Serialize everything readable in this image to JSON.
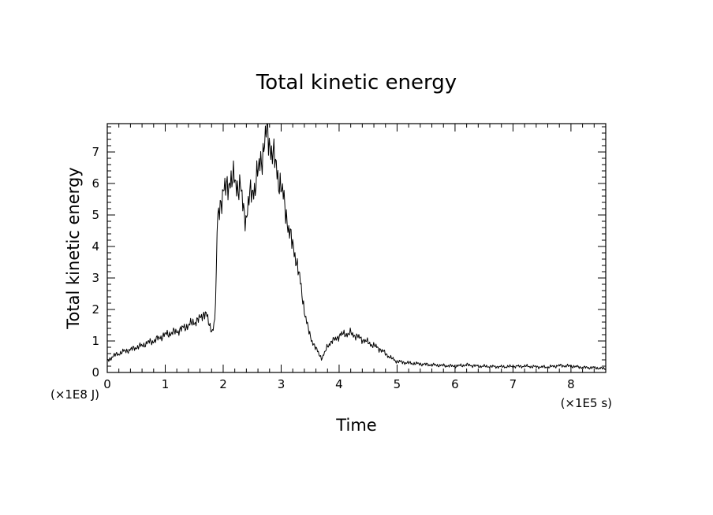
{
  "chart_data": {
    "type": "line",
    "title": "Total kinetic energy",
    "xlabel": "Time",
    "ylabel": "Total kinetic energy",
    "x_unit": "(×1E5 s)",
    "y_unit": "(×1E8 J)",
    "xlim": [
      0,
      8.6
    ],
    "ylim": [
      0,
      7.9
    ],
    "x_ticks": [
      "0",
      "1",
      "2",
      "3",
      "4",
      "5",
      "6",
      "7",
      "8"
    ],
    "y_ticks": [
      "0",
      "1",
      "2",
      "3",
      "4",
      "5",
      "6",
      "7"
    ],
    "grid": false,
    "line_color": "#000000",
    "series": [
      {
        "x": [
          0,
          0.05,
          0.1,
          0.2,
          0.3,
          0.4,
          0.5,
          0.6,
          0.7,
          0.8,
          0.9,
          1.0,
          1.1,
          1.2,
          1.3,
          1.4,
          1.5,
          1.6,
          1.65,
          1.7,
          1.75,
          1.8,
          1.85,
          1.88,
          1.9,
          1.95,
          2.0,
          2.05,
          2.1,
          2.15,
          2.2,
          2.25,
          2.3,
          2.35,
          2.4,
          2.45,
          2.5,
          2.55,
          2.6,
          2.65,
          2.7,
          2.75,
          2.8,
          2.85,
          2.9,
          2.95,
          3.0,
          3.05,
          3.1,
          3.15,
          3.2,
          3.25,
          3.3,
          3.35,
          3.4,
          3.45,
          3.5,
          3.55,
          3.6,
          3.65,
          3.7,
          3.75,
          3.8,
          3.85,
          3.9,
          3.95,
          4.0,
          4.05,
          4.1,
          4.15,
          4.2,
          4.25,
          4.3,
          4.35,
          4.4,
          4.45,
          4.5,
          4.6,
          4.7,
          4.8,
          4.9,
          5.0,
          5.2,
          5.4,
          5.6,
          5.8,
          6.0,
          6.2,
          6.4,
          6.6,
          6.8,
          7.0,
          7.2,
          7.4,
          7.6,
          7.8,
          8.0,
          8.2,
          8.4,
          8.6
        ],
        "y": [
          0.35,
          0.45,
          0.52,
          0.6,
          0.68,
          0.72,
          0.8,
          0.85,
          0.95,
          1.0,
          1.1,
          1.2,
          1.25,
          1.3,
          1.4,
          1.5,
          1.6,
          1.7,
          1.85,
          1.9,
          1.55,
          1.35,
          1.5,
          2.8,
          5.0,
          5.4,
          5.6,
          5.9,
          6.1,
          6.0,
          6.2,
          5.9,
          5.8,
          5.2,
          4.9,
          5.5,
          5.8,
          5.9,
          6.3,
          6.8,
          7.1,
          7.7,
          7.3,
          7.0,
          6.6,
          6.2,
          5.9,
          5.4,
          4.9,
          4.4,
          4.0,
          3.7,
          3.2,
          2.6,
          2.0,
          1.5,
          1.15,
          0.95,
          0.75,
          0.6,
          0.45,
          0.6,
          0.85,
          0.95,
          1.0,
          1.1,
          1.15,
          1.2,
          1.25,
          1.2,
          1.25,
          1.2,
          1.15,
          1.1,
          1.05,
          1.0,
          0.95,
          0.85,
          0.75,
          0.6,
          0.45,
          0.35,
          0.3,
          0.27,
          0.24,
          0.22,
          0.2,
          0.24,
          0.2,
          0.19,
          0.18,
          0.19,
          0.2,
          0.18,
          0.17,
          0.22,
          0.2,
          0.16,
          0.15,
          0.12
        ]
      }
    ]
  }
}
